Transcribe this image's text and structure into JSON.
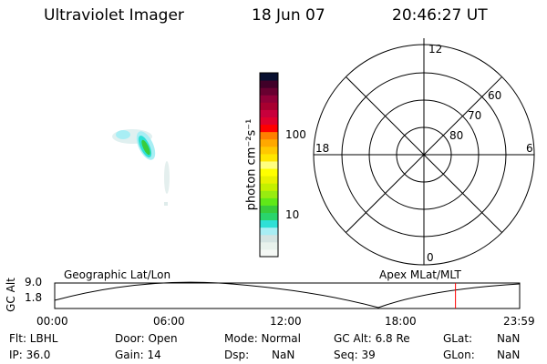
{
  "header": {
    "title": "Ultraviolet Imager",
    "date": "18 Jun 07",
    "time": "20:46:27 UT"
  },
  "colorbar": {
    "label": "photon cm⁻²s⁻¹",
    "ticks": [
      "100",
      "10"
    ],
    "colors": [
      "#f5f8f5",
      "#e8f2ec",
      "#d4e4e2",
      "#a8eef4",
      "#2ee0d6",
      "#2ad46c",
      "#38cc3c",
      "#60e818",
      "#98ec10",
      "#c4f000",
      "#e8f200",
      "#ffff00",
      "#ffff80",
      "#ffe600",
      "#ffc800",
      "#ffa800",
      "#ff8000",
      "#ff0000",
      "#e0002c",
      "#c8003c",
      "#a80030",
      "#900038",
      "#680030",
      "#400028",
      "#081030"
    ]
  },
  "polar": {
    "mlt_labels": [
      "12",
      "6",
      "0",
      "18"
    ],
    "lat_labels": [
      "80",
      "70",
      "60"
    ]
  },
  "timeline": {
    "left_title": "Geographic Lat/Lon",
    "right_title": "Apex MLat/MLT",
    "ylabel": "GC Alt",
    "ymax": "9.0",
    "ymin": "1.8",
    "xticks": [
      "00:00",
      "06:00",
      "12:00",
      "18:00",
      "23:59"
    ],
    "current_time_fraction": 0.862,
    "marker_color": "#ff0000"
  },
  "info": {
    "flt": "Flt: LBHL",
    "ip": "IP: 36.0",
    "door": "Door: Open",
    "gain": "Gain: 14",
    "mode": "Mode: Normal",
    "dsp": "Dsp:",
    "dsp_val": "NaN",
    "gcalt": "GC Alt: 6.8 Re",
    "seq": "Seq: 39",
    "glat": "GLat:",
    "glat_val": "NaN",
    "glon": "GLon:",
    "glon_val": "NaN"
  }
}
